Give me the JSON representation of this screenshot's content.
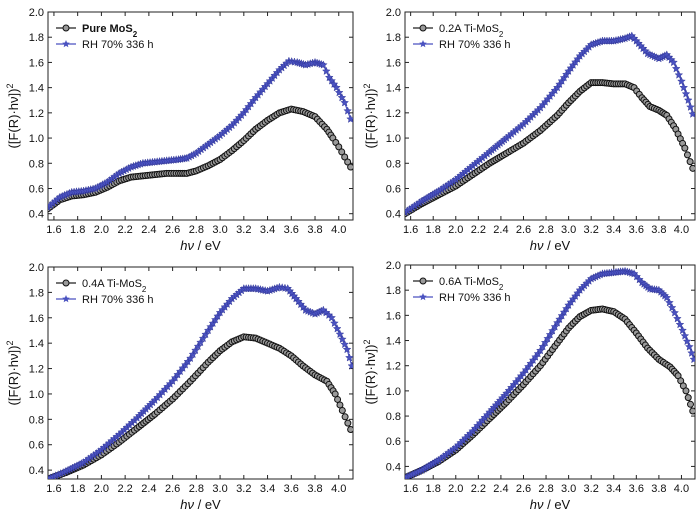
{
  "chart_data": [
    {
      "type": "line",
      "xlabel": "hν / eV",
      "ylabel": "([F(R)·hν])²",
      "xlim": [
        1.55,
        4.12
      ],
      "ylim": [
        0.35,
        2.0
      ],
      "xticks": [
        "1.6",
        "1.8",
        "2.0",
        "2.2",
        "2.4",
        "2.6",
        "2.8",
        "3.0",
        "3.2",
        "3.4",
        "3.6",
        "3.8",
        "4.0"
      ],
      "yticks": [
        "0.4",
        "0.6",
        "0.8",
        "1.0",
        "1.2",
        "1.4",
        "1.6",
        "1.8",
        "2.0"
      ],
      "legend_position": "top-left",
      "series": [
        {
          "name": "Pure MoS2",
          "legend_bold": true,
          "marker": "circle",
          "color": "#222222",
          "points": [
            [
              1.55,
              0.44
            ],
            [
              1.65,
              0.51
            ],
            [
              1.75,
              0.54
            ],
            [
              1.85,
              0.55
            ],
            [
              1.95,
              0.57
            ],
            [
              2.05,
              0.61
            ],
            [
              2.15,
              0.66
            ],
            [
              2.25,
              0.69
            ],
            [
              2.35,
              0.7
            ],
            [
              2.45,
              0.71
            ],
            [
              2.55,
              0.72
            ],
            [
              2.65,
              0.72
            ],
            [
              2.72,
              0.72
            ],
            [
              2.8,
              0.74
            ],
            [
              2.9,
              0.78
            ],
            [
              3.0,
              0.83
            ],
            [
              3.1,
              0.9
            ],
            [
              3.2,
              0.98
            ],
            [
              3.3,
              1.07
            ],
            [
              3.4,
              1.14
            ],
            [
              3.5,
              1.2
            ],
            [
              3.6,
              1.23
            ],
            [
              3.7,
              1.21
            ],
            [
              3.8,
              1.17
            ],
            [
              3.9,
              1.07
            ],
            [
              3.95,
              1.0
            ],
            [
              4.0,
              0.93
            ],
            [
              4.05,
              0.85
            ],
            [
              4.1,
              0.77
            ]
          ]
        },
        {
          "name": "RH 70%  336 h",
          "legend_bold": false,
          "marker": "star",
          "color": "#4a52c0",
          "points": [
            [
              1.55,
              0.45
            ],
            [
              1.65,
              0.53
            ],
            [
              1.75,
              0.57
            ],
            [
              1.85,
              0.58
            ],
            [
              1.95,
              0.6
            ],
            [
              2.05,
              0.65
            ],
            [
              2.15,
              0.72
            ],
            [
              2.25,
              0.77
            ],
            [
              2.35,
              0.8
            ],
            [
              2.45,
              0.81
            ],
            [
              2.55,
              0.82
            ],
            [
              2.65,
              0.83
            ],
            [
              2.72,
              0.84
            ],
            [
              2.8,
              0.88
            ],
            [
              2.9,
              0.95
            ],
            [
              3.0,
              1.02
            ],
            [
              3.1,
              1.1
            ],
            [
              3.2,
              1.2
            ],
            [
              3.3,
              1.32
            ],
            [
              3.4,
              1.43
            ],
            [
              3.5,
              1.54
            ],
            [
              3.58,
              1.61
            ],
            [
              3.65,
              1.6
            ],
            [
              3.72,
              1.58
            ],
            [
              3.8,
              1.6
            ],
            [
              3.87,
              1.58
            ],
            [
              3.92,
              1.48
            ],
            [
              3.98,
              1.4
            ],
            [
              4.05,
              1.28
            ],
            [
              4.1,
              1.15
            ]
          ]
        }
      ]
    },
    {
      "type": "line",
      "xlabel": "hν / eV",
      "ylabel": "([F(R)·hν])²",
      "xlim": [
        1.55,
        4.12
      ],
      "ylim": [
        0.35,
        2.0
      ],
      "xticks": [
        "1.6",
        "1.8",
        "2.0",
        "2.2",
        "2.4",
        "2.6",
        "2.8",
        "3.0",
        "3.2",
        "3.4",
        "3.6",
        "3.8",
        "4.0"
      ],
      "yticks": [
        "0.4",
        "0.6",
        "0.8",
        "1.0",
        "1.2",
        "1.4",
        "1.6",
        "1.8",
        "2.0"
      ],
      "legend_position": "top-left",
      "series": [
        {
          "name": "0.2A Ti-MoS2",
          "legend_bold": false,
          "marker": "circle",
          "color": "#222222",
          "points": [
            [
              1.55,
              0.4
            ],
            [
              1.7,
              0.48
            ],
            [
              1.85,
              0.55
            ],
            [
              2.0,
              0.62
            ],
            [
              2.15,
              0.71
            ],
            [
              2.3,
              0.8
            ],
            [
              2.45,
              0.88
            ],
            [
              2.6,
              0.96
            ],
            [
              2.75,
              1.06
            ],
            [
              2.9,
              1.18
            ],
            [
              3.0,
              1.28
            ],
            [
              3.1,
              1.37
            ],
            [
              3.2,
              1.44
            ],
            [
              3.3,
              1.44
            ],
            [
              3.4,
              1.43
            ],
            [
              3.5,
              1.43
            ],
            [
              3.58,
              1.4
            ],
            [
              3.65,
              1.32
            ],
            [
              3.72,
              1.25
            ],
            [
              3.8,
              1.22
            ],
            [
              3.87,
              1.18
            ],
            [
              3.95,
              1.07
            ],
            [
              4.03,
              0.92
            ],
            [
              4.1,
              0.76
            ]
          ]
        },
        {
          "name": "RH 70%  336 h",
          "legend_bold": false,
          "marker": "star",
          "color": "#4a52c0",
          "points": [
            [
              1.55,
              0.41
            ],
            [
              1.7,
              0.5
            ],
            [
              1.85,
              0.58
            ],
            [
              2.0,
              0.67
            ],
            [
              2.15,
              0.78
            ],
            [
              2.3,
              0.89
            ],
            [
              2.45,
              1.0
            ],
            [
              2.6,
              1.11
            ],
            [
              2.75,
              1.24
            ],
            [
              2.9,
              1.4
            ],
            [
              3.0,
              1.53
            ],
            [
              3.1,
              1.65
            ],
            [
              3.2,
              1.74
            ],
            [
              3.3,
              1.77
            ],
            [
              3.4,
              1.77
            ],
            [
              3.5,
              1.79
            ],
            [
              3.56,
              1.81
            ],
            [
              3.62,
              1.75
            ],
            [
              3.7,
              1.67
            ],
            [
              3.8,
              1.63
            ],
            [
              3.87,
              1.66
            ],
            [
              3.93,
              1.6
            ],
            [
              4.0,
              1.45
            ],
            [
              4.06,
              1.3
            ],
            [
              4.1,
              1.19
            ]
          ]
        }
      ]
    },
    {
      "type": "line",
      "xlabel": "hν / eV",
      "ylabel": "([F(R)·hν])²",
      "xlim": [
        1.55,
        4.12
      ],
      "ylim": [
        0.33,
        2.0
      ],
      "xticks": [
        "1.6",
        "1.8",
        "2.0",
        "2.2",
        "2.4",
        "2.6",
        "2.8",
        "3.0",
        "3.2",
        "3.4",
        "3.6",
        "3.8",
        "4.0"
      ],
      "yticks": [
        "0.4",
        "0.6",
        "0.8",
        "1.0",
        "1.2",
        "1.4",
        "1.6",
        "1.8",
        "2.0"
      ],
      "legend_position": "top-left",
      "series": [
        {
          "name": "0.4A Ti-MoS2",
          "legend_bold": false,
          "marker": "circle",
          "color": "#222222",
          "points": [
            [
              1.55,
              0.33
            ],
            [
              1.7,
              0.38
            ],
            [
              1.85,
              0.44
            ],
            [
              2.0,
              0.52
            ],
            [
              2.15,
              0.62
            ],
            [
              2.3,
              0.73
            ],
            [
              2.45,
              0.84
            ],
            [
              2.6,
              0.96
            ],
            [
              2.75,
              1.1
            ],
            [
              2.9,
              1.25
            ],
            [
              3.0,
              1.34
            ],
            [
              3.1,
              1.41
            ],
            [
              3.2,
              1.45
            ],
            [
              3.3,
              1.44
            ],
            [
              3.4,
              1.4
            ],
            [
              3.5,
              1.36
            ],
            [
              3.6,
              1.3
            ],
            [
              3.7,
              1.22
            ],
            [
              3.8,
              1.15
            ],
            [
              3.9,
              1.1
            ],
            [
              3.97,
              1.0
            ],
            [
              4.03,
              0.87
            ],
            [
              4.1,
              0.72
            ]
          ]
        },
        {
          "name": "RH 70%  336 h",
          "legend_bold": false,
          "marker": "star",
          "color": "#4a52c0",
          "points": [
            [
              1.55,
              0.33
            ],
            [
              1.7,
              0.39
            ],
            [
              1.85,
              0.46
            ],
            [
              2.0,
              0.56
            ],
            [
              2.15,
              0.68
            ],
            [
              2.3,
              0.81
            ],
            [
              2.45,
              0.95
            ],
            [
              2.6,
              1.1
            ],
            [
              2.75,
              1.28
            ],
            [
              2.9,
              1.5
            ],
            [
              3.0,
              1.64
            ],
            [
              3.1,
              1.75
            ],
            [
              3.2,
              1.83
            ],
            [
              3.3,
              1.83
            ],
            [
              3.4,
              1.81
            ],
            [
              3.5,
              1.84
            ],
            [
              3.57,
              1.83
            ],
            [
              3.64,
              1.75
            ],
            [
              3.72,
              1.66
            ],
            [
              3.8,
              1.63
            ],
            [
              3.87,
              1.66
            ],
            [
              3.94,
              1.6
            ],
            [
              4.01,
              1.47
            ],
            [
              4.07,
              1.35
            ],
            [
              4.11,
              1.22
            ]
          ]
        }
      ]
    },
    {
      "type": "line",
      "xlabel": "hν / eV",
      "ylabel": "([F(R)·hν])²",
      "xlim": [
        1.55,
        4.12
      ],
      "ylim": [
        0.3,
        2.0
      ],
      "xticks": [
        "1.6",
        "1.8",
        "2.0",
        "2.2",
        "2.4",
        "2.6",
        "2.8",
        "3.0",
        "3.2",
        "3.4",
        "3.6",
        "3.8",
        "4.0"
      ],
      "yticks": [
        "0.4",
        "0.6",
        "0.8",
        "1.0",
        "1.2",
        "1.4",
        "1.6",
        "1.8",
        "2.0"
      ],
      "legend_position": "top-left",
      "series": [
        {
          "name": "0.6A Ti-MoS2",
          "legend_bold": false,
          "marker": "circle",
          "color": "#222222",
          "points": [
            [
              1.55,
              0.31
            ],
            [
              1.7,
              0.37
            ],
            [
              1.85,
              0.44
            ],
            [
              2.0,
              0.53
            ],
            [
              2.15,
              0.65
            ],
            [
              2.3,
              0.78
            ],
            [
              2.45,
              0.91
            ],
            [
              2.6,
              1.05
            ],
            [
              2.75,
              1.2
            ],
            [
              2.9,
              1.38
            ],
            [
              3.0,
              1.5
            ],
            [
              3.1,
              1.59
            ],
            [
              3.2,
              1.64
            ],
            [
              3.3,
              1.65
            ],
            [
              3.4,
              1.63
            ],
            [
              3.5,
              1.57
            ],
            [
              3.6,
              1.46
            ],
            [
              3.7,
              1.34
            ],
            [
              3.8,
              1.25
            ],
            [
              3.9,
              1.19
            ],
            [
              3.97,
              1.12
            ],
            [
              4.04,
              1.0
            ],
            [
              4.1,
              0.84
            ]
          ]
        },
        {
          "name": "RH 70%  336 h",
          "legend_bold": false,
          "marker": "star",
          "color": "#4a52c0",
          "points": [
            [
              1.55,
              0.31
            ],
            [
              1.7,
              0.37
            ],
            [
              1.85,
              0.45
            ],
            [
              2.0,
              0.55
            ],
            [
              2.15,
              0.68
            ],
            [
              2.3,
              0.83
            ],
            [
              2.45,
              0.98
            ],
            [
              2.6,
              1.14
            ],
            [
              2.75,
              1.32
            ],
            [
              2.9,
              1.54
            ],
            [
              3.0,
              1.68
            ],
            [
              3.1,
              1.8
            ],
            [
              3.2,
              1.89
            ],
            [
              3.3,
              1.93
            ],
            [
              3.4,
              1.94
            ],
            [
              3.5,
              1.95
            ],
            [
              3.58,
              1.93
            ],
            [
              3.65,
              1.86
            ],
            [
              3.72,
              1.81
            ],
            [
              3.8,
              1.8
            ],
            [
              3.87,
              1.74
            ],
            [
              3.94,
              1.62
            ],
            [
              4.01,
              1.48
            ],
            [
              4.07,
              1.35
            ],
            [
              4.11,
              1.25
            ]
          ]
        }
      ]
    }
  ]
}
